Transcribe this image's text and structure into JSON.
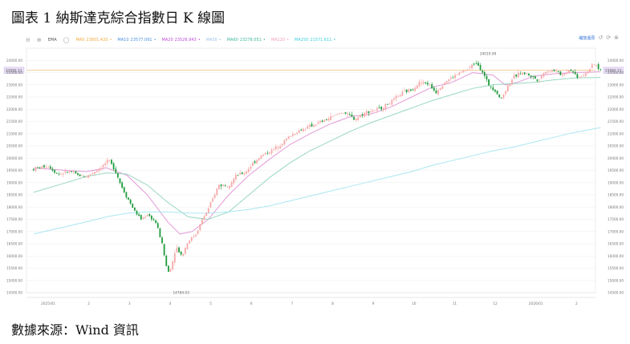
{
  "figure_title": "圖表 1 納斯達克綜合指數日 K 線圖",
  "source_text": "數據來源：Wind 資訊",
  "toolbar": {
    "chart_type_label": "EMA",
    "reset_label": "縮放還原",
    "icons": [
      "minus-icon",
      "plus-icon",
      "circle-icon",
      "undo-icon",
      "refresh-icon",
      "close-icon"
    ]
  },
  "chart_data": {
    "type": "candlestick",
    "title": "",
    "xlabel": "",
    "ylabel": "",
    "ylim": [
      14500,
      24500
    ],
    "y_ticks": [
      14500,
      15000,
      15500,
      16000,
      16500,
      17000,
      17500,
      18000,
      18500,
      19000,
      19500,
      20000,
      20500,
      21000,
      21500,
      22000,
      22500,
      23000,
      23500,
      24000
    ],
    "y_tick_labels": [
      "14500.00",
      "15000.00",
      "15500.00",
      "16000.00",
      "16500.00",
      "17000.00",
      "17500.00",
      "18000.00",
      "18500.00",
      "19000.00",
      "19500.00",
      "20000.00",
      "20500.00",
      "21000.00",
      "21500.00",
      "22000.00",
      "22500.00",
      "23000.00",
      "23500.00",
      "24000.00"
    ],
    "x_month_labels": [
      "2025/01",
      "2",
      "3",
      "4",
      "5",
      "6",
      "7",
      "8",
      "9",
      "10",
      "11",
      "12",
      "2026/01",
      "2"
    ],
    "x_range": [
      0,
      14
    ],
    "current_price": 23592.11,
    "current_price_label": "23592.11",
    "annotations": [
      {
        "text": "24019.99",
        "kind": "high",
        "x": 10.6,
        "y": 24019.99
      },
      {
        "text": "14784.03",
        "kind": "low",
        "x": 3.05,
        "y": 14784.03
      }
    ],
    "key_points": [
      {
        "x": -0.3,
        "y": 19550
      },
      {
        "x": 0.05,
        "y": 19700
      },
      {
        "x": 0.3,
        "y": 19350
      },
      {
        "x": 0.6,
        "y": 19450
      },
      {
        "x": 0.8,
        "y": 19300
      },
      {
        "x": 1.0,
        "y": 19250
      },
      {
        "x": 1.3,
        "y": 19550
      },
      {
        "x": 1.55,
        "y": 19900
      },
      {
        "x": 1.7,
        "y": 19550
      },
      {
        "x": 1.85,
        "y": 18900
      },
      {
        "x": 2.0,
        "y": 18400
      },
      {
        "x": 2.2,
        "y": 17800
      },
      {
        "x": 2.35,
        "y": 17500
      },
      {
        "x": 2.5,
        "y": 17700
      },
      {
        "x": 2.7,
        "y": 17400
      },
      {
        "x": 2.85,
        "y": 16600
      },
      {
        "x": 3.0,
        "y": 15300
      },
      {
        "x": 3.1,
        "y": 15600
      },
      {
        "x": 3.2,
        "y": 16400
      },
      {
        "x": 3.35,
        "y": 16000
      },
      {
        "x": 3.5,
        "y": 16600
      },
      {
        "x": 3.7,
        "y": 16900
      },
      {
        "x": 3.85,
        "y": 17500
      },
      {
        "x": 4.0,
        "y": 17900
      },
      {
        "x": 4.25,
        "y": 18900
      },
      {
        "x": 4.5,
        "y": 18900
      },
      {
        "x": 4.7,
        "y": 19300
      },
      {
        "x": 4.9,
        "y": 19400
      },
      {
        "x": 5.1,
        "y": 19800
      },
      {
        "x": 5.3,
        "y": 20100
      },
      {
        "x": 5.55,
        "y": 20300
      },
      {
        "x": 5.8,
        "y": 20600
      },
      {
        "x": 6.0,
        "y": 20900
      },
      {
        "x": 6.2,
        "y": 21100
      },
      {
        "x": 6.5,
        "y": 21300
      },
      {
        "x": 6.8,
        "y": 21500
      },
      {
        "x": 7.0,
        "y": 21650
      },
      {
        "x": 7.3,
        "y": 21900
      },
      {
        "x": 7.6,
        "y": 21600
      },
      {
        "x": 7.9,
        "y": 21900
      },
      {
        "x": 8.2,
        "y": 22000
      },
      {
        "x": 8.5,
        "y": 22300
      },
      {
        "x": 8.8,
        "y": 22700
      },
      {
        "x": 9.0,
        "y": 22800
      },
      {
        "x": 9.2,
        "y": 23100
      },
      {
        "x": 9.4,
        "y": 23050
      },
      {
        "x": 9.6,
        "y": 22700
      },
      {
        "x": 9.8,
        "y": 23100
      },
      {
        "x": 10.0,
        "y": 23300
      },
      {
        "x": 10.2,
        "y": 23500
      },
      {
        "x": 10.35,
        "y": 23600
      },
      {
        "x": 10.5,
        "y": 23800
      },
      {
        "x": 10.6,
        "y": 23950
      },
      {
        "x": 10.75,
        "y": 23500
      },
      {
        "x": 10.9,
        "y": 23000
      },
      {
        "x": 11.05,
        "y": 22800
      },
      {
        "x": 11.2,
        "y": 22400
      },
      {
        "x": 11.35,
        "y": 22900
      },
      {
        "x": 11.5,
        "y": 23300
      },
      {
        "x": 11.7,
        "y": 23500
      },
      {
        "x": 11.9,
        "y": 23400
      },
      {
        "x": 12.1,
        "y": 23200
      },
      {
        "x": 12.3,
        "y": 23550
      },
      {
        "x": 12.5,
        "y": 23600
      },
      {
        "x": 12.7,
        "y": 23400
      },
      {
        "x": 12.9,
        "y": 23650
      },
      {
        "x": 13.1,
        "y": 23300
      },
      {
        "x": 13.3,
        "y": 23500
      },
      {
        "x": 13.5,
        "y": 23850
      },
      {
        "x": 13.65,
        "y": 23592
      }
    ],
    "moving_averages": [
      {
        "name": "MA5",
        "value": "23601.420",
        "color": "#f2a93b"
      },
      {
        "name": "MA10",
        "value": "23577.091",
        "color": "#4a90e2"
      },
      {
        "name": "MA20",
        "value": "23526.943",
        "color": "#c04bd9"
      },
      {
        "name": "MA30",
        "value": "",
        "color": "#9fc3e8"
      },
      {
        "name": "MA60",
        "value": "23278.051",
        "color": "#3db89a"
      },
      {
        "name": "MA120",
        "value": "",
        "color": "#f3a0c0"
      },
      {
        "name": "MA250",
        "value": "21571.611",
        "color": "#3ad0e0"
      }
    ],
    "ma_lines": [
      {
        "name": "MA20",
        "color": "#e29ad8",
        "points": [
          [
            -0.3,
            19600
          ],
          [
            0.5,
            19500
          ],
          [
            1.0,
            19450
          ],
          [
            1.5,
            19600
          ],
          [
            2.0,
            19300
          ],
          [
            2.5,
            18500
          ],
          [
            3.0,
            17400
          ],
          [
            3.3,
            16900
          ],
          [
            3.6,
            17000
          ],
          [
            4.0,
            17500
          ],
          [
            4.5,
            18500
          ],
          [
            5.0,
            19300
          ],
          [
            5.5,
            19950
          ],
          [
            6.0,
            20550
          ],
          [
            6.5,
            21000
          ],
          [
            7.0,
            21400
          ],
          [
            7.5,
            21700
          ],
          [
            8.0,
            21800
          ],
          [
            8.5,
            22100
          ],
          [
            9.0,
            22500
          ],
          [
            9.5,
            22900
          ],
          [
            10.0,
            23100
          ],
          [
            10.5,
            23500
          ],
          [
            11.0,
            23400
          ],
          [
            11.3,
            23000
          ],
          [
            11.6,
            23100
          ],
          [
            12.0,
            23350
          ],
          [
            12.5,
            23450
          ],
          [
            13.0,
            23500
          ],
          [
            13.65,
            23530
          ]
        ]
      },
      {
        "name": "MA60",
        "color": "#9ad7c2",
        "points": [
          [
            -0.3,
            18600
          ],
          [
            0.5,
            19000
          ],
          [
            1.0,
            19250
          ],
          [
            1.5,
            19400
          ],
          [
            2.0,
            19350
          ],
          [
            2.5,
            18900
          ],
          [
            3.0,
            18200
          ],
          [
            3.5,
            17600
          ],
          [
            4.0,
            17500
          ],
          [
            4.5,
            17800
          ],
          [
            5.0,
            18500
          ],
          [
            5.5,
            19200
          ],
          [
            6.0,
            19800
          ],
          [
            6.5,
            20300
          ],
          [
            7.0,
            20700
          ],
          [
            7.5,
            21100
          ],
          [
            8.0,
            21450
          ],
          [
            8.5,
            21750
          ],
          [
            9.0,
            22050
          ],
          [
            9.5,
            22350
          ],
          [
            10.0,
            22600
          ],
          [
            10.5,
            22850
          ],
          [
            11.0,
            23000
          ],
          [
            11.5,
            23050
          ],
          [
            12.0,
            23100
          ],
          [
            12.5,
            23200
          ],
          [
            13.0,
            23280
          ],
          [
            13.65,
            23300
          ]
        ]
      },
      {
        "name": "MA250",
        "color": "#a9e7f1",
        "points": [
          [
            -0.3,
            16900
          ],
          [
            0.5,
            17200
          ],
          [
            1.0,
            17400
          ],
          [
            1.5,
            17600
          ],
          [
            2.0,
            17750
          ],
          [
            2.5,
            17800
          ],
          [
            3.0,
            17800
          ],
          [
            3.5,
            17760
          ],
          [
            4.0,
            17750
          ],
          [
            4.5,
            17800
          ],
          [
            5.0,
            17900
          ],
          [
            5.5,
            18050
          ],
          [
            6.0,
            18250
          ],
          [
            6.5,
            18450
          ],
          [
            7.0,
            18650
          ],
          [
            7.5,
            18850
          ],
          [
            8.0,
            19050
          ],
          [
            8.5,
            19250
          ],
          [
            9.0,
            19450
          ],
          [
            9.5,
            19700
          ],
          [
            10.0,
            19900
          ],
          [
            10.5,
            20100
          ],
          [
            11.0,
            20300
          ],
          [
            11.5,
            20450
          ],
          [
            12.0,
            20650
          ],
          [
            12.5,
            20850
          ],
          [
            13.0,
            21050
          ],
          [
            13.65,
            21250
          ]
        ]
      }
    ],
    "up_color": "#f7a7a7",
    "down_color": "#1e9b3c",
    "grid": true
  }
}
